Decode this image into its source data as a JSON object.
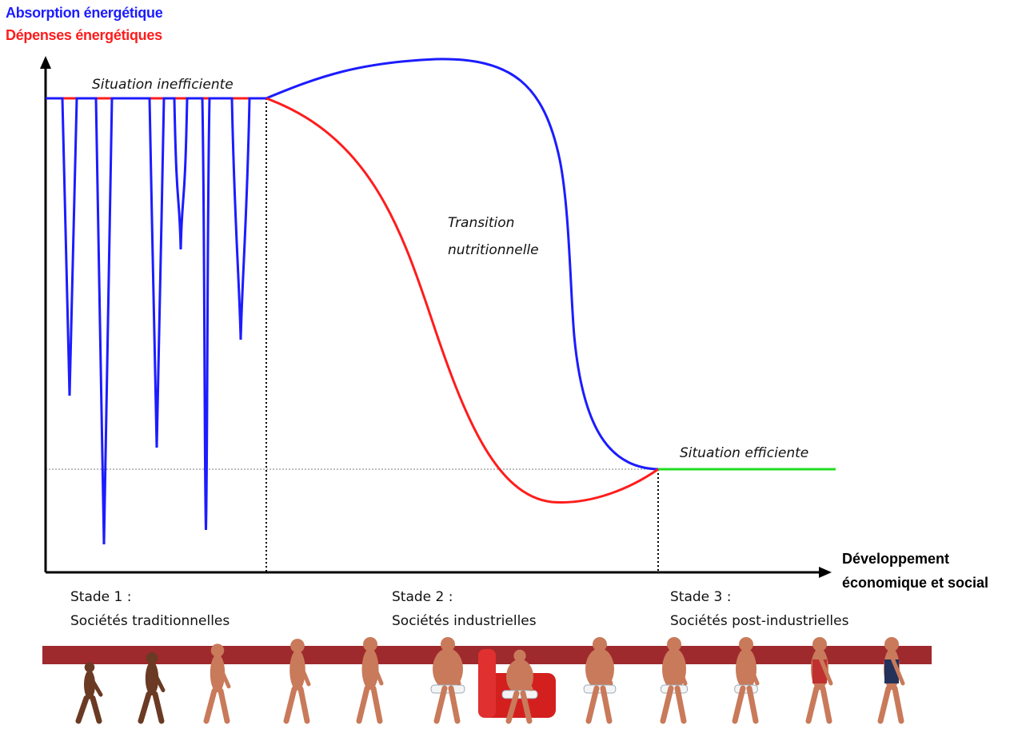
{
  "chart_data": {
    "type": "line",
    "title": "",
    "ylabel": [
      "Absorption énergétique",
      "Dépenses énergétiques"
    ],
    "xlabel": [
      "Développement",
      "économique et social"
    ],
    "annotations": {
      "inefficient": "Situation inefficiente",
      "transition": [
        "Transition",
        "nutritionnelle"
      ],
      "efficient": "Situation efficiente"
    },
    "stages": [
      {
        "label": "Stade 1 :",
        "name": "Sociétés traditionnelles"
      },
      {
        "label": "Stade 2 :",
        "name": "Sociétés industrielles"
      },
      {
        "label": "Stade 3 :",
        "name": "Sociétés post-industrielles"
      }
    ],
    "series": [
      {
        "name": "Absorption énergétique",
        "color": "#1c1cff"
      },
      {
        "name": "Dépenses énergétiques",
        "color": "#ff1c1c"
      },
      {
        "name": "Situation efficiente",
        "color": "#22dd22"
      }
    ],
    "illustration": "evolution-from-primate-to-obese-human-to-runner"
  }
}
